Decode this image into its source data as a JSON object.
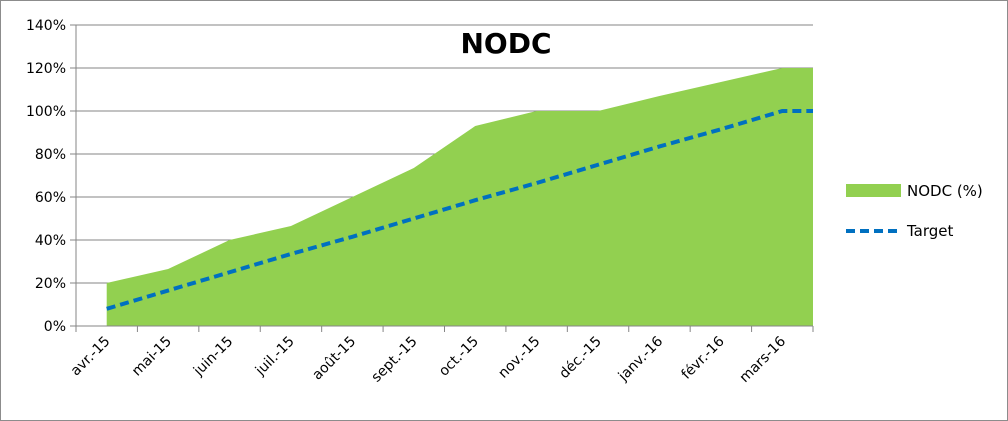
{
  "chart_data": {
    "type": "area",
    "title": "NODC",
    "categories": [
      "avr.-15",
      "mai-15",
      "juin-15",
      "juil.-15",
      "août-15",
      "sept.-15",
      "oct.-15",
      "nov.-15",
      "déc.-15",
      "janv.-16",
      "févr.-16",
      "mars-16"
    ],
    "series": [
      {
        "name": "NODC (%)",
        "kind": "area",
        "color": "#92d050",
        "values": [
          0.2,
          0.265,
          0.4,
          0.465,
          0.6,
          0.735,
          0.93,
          1.0,
          1.0,
          1.07,
          1.135,
          1.2
        ]
      },
      {
        "name": "Target",
        "kind": "dashed-line",
        "color": "#0070c0",
        "values": [
          0.08,
          0.165,
          0.25,
          0.335,
          0.415,
          0.5,
          0.585,
          0.665,
          0.75,
          0.835,
          0.915,
          1.0
        ]
      }
    ],
    "y_ticks": [
      "0%",
      "20%",
      "40%",
      "60%",
      "80%",
      "100%",
      "120%",
      "140%"
    ],
    "ylim": [
      0,
      1.4
    ],
    "xlabel": "",
    "ylabel": "",
    "grid": true,
    "legend_position": "right"
  }
}
